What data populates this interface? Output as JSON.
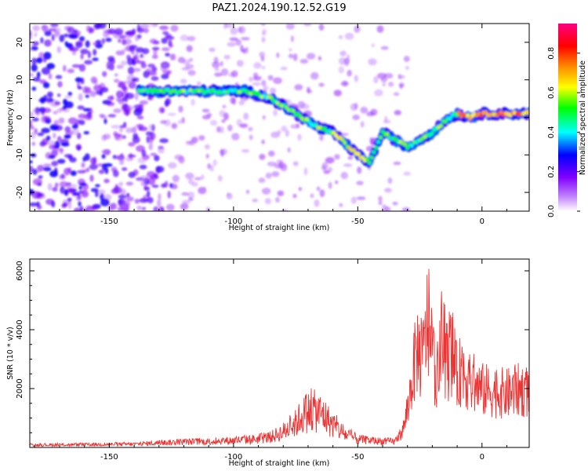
{
  "title": "PAZ1.2024.190.12.52.G19",
  "chart_data": [
    {
      "type": "heatmap",
      "xlabel": "Height of straight line (km)",
      "ylabel": "Frequency (Hz)",
      "xlim": [
        -182,
        19
      ],
      "ylim": [
        -25,
        25
      ],
      "xticks": [
        -150,
        -100,
        -50,
        0
      ],
      "yticks": [
        -20,
        -10,
        0,
        10,
        20
      ],
      "colorbar": {
        "label": "Normalized spectral amplitude",
        "range": [
          0,
          0.95
        ],
        "ticks": [
          0.0,
          0.2,
          0.4,
          0.6,
          0.8
        ],
        "colormap": [
          "#ffffff",
          "#8000ff",
          "#0000ff",
          "#00ffff",
          "#00ff00",
          "#ffff00",
          "#ff8000",
          "#ff0000",
          "#ff0080"
        ]
      },
      "ridge": {
        "x": [
          -138,
          -130,
          -120,
          -110,
          -100,
          -95,
          -90,
          -85,
          -80,
          -75,
          -70,
          -65,
          -60,
          -55,
          -50,
          -45,
          -40,
          -35,
          -30,
          -25,
          -20,
          -15,
          -10,
          -5,
          0,
          5,
          10,
          15,
          19
        ],
        "y": [
          7,
          7,
          7,
          7,
          7,
          7,
          6,
          5,
          3,
          1,
          -1,
          -3,
          -4,
          -7,
          -10,
          -12,
          -4,
          -6,
          -8,
          -6,
          -4,
          -1,
          1,
          0,
          1,
          1,
          1,
          1,
          1
        ]
      },
      "noise_region_x": [
        -182,
        -125
      ]
    },
    {
      "type": "line",
      "xlabel": "Height of straight line (km)",
      "ylabel": "SNR (10 * v/v)",
      "xlim": [
        -182,
        19
      ],
      "ylim": [
        0,
        6400
      ],
      "xticks": [
        -150,
        -100,
        -50,
        0
      ],
      "yticks": [
        2000,
        4000,
        6000
      ],
      "color": "#ee3333",
      "envelope": {
        "x": [
          -182,
          -160,
          -140,
          -130,
          -120,
          -110,
          -100,
          -90,
          -85,
          -80,
          -75,
          -72,
          -68,
          -64,
          -60,
          -55,
          -50,
          -45,
          -40,
          -35,
          -32,
          -30,
          -28,
          -26,
          -24,
          -22,
          -20,
          -18,
          -16,
          -14,
          -12,
          -10,
          -8,
          -5,
          0,
          5,
          10,
          15,
          19
        ],
        "y": [
          130,
          150,
          180,
          250,
          300,
          320,
          380,
          460,
          560,
          850,
          1300,
          1800,
          2000,
          1800,
          1200,
          700,
          450,
          380,
          330,
          330,
          800,
          1800,
          3600,
          5000,
          4200,
          6300,
          4600,
          3500,
          5300,
          4300,
          4900,
          3400,
          4100,
          3200,
          2900,
          2800,
          2700,
          2900,
          2800
        ]
      }
    }
  ]
}
